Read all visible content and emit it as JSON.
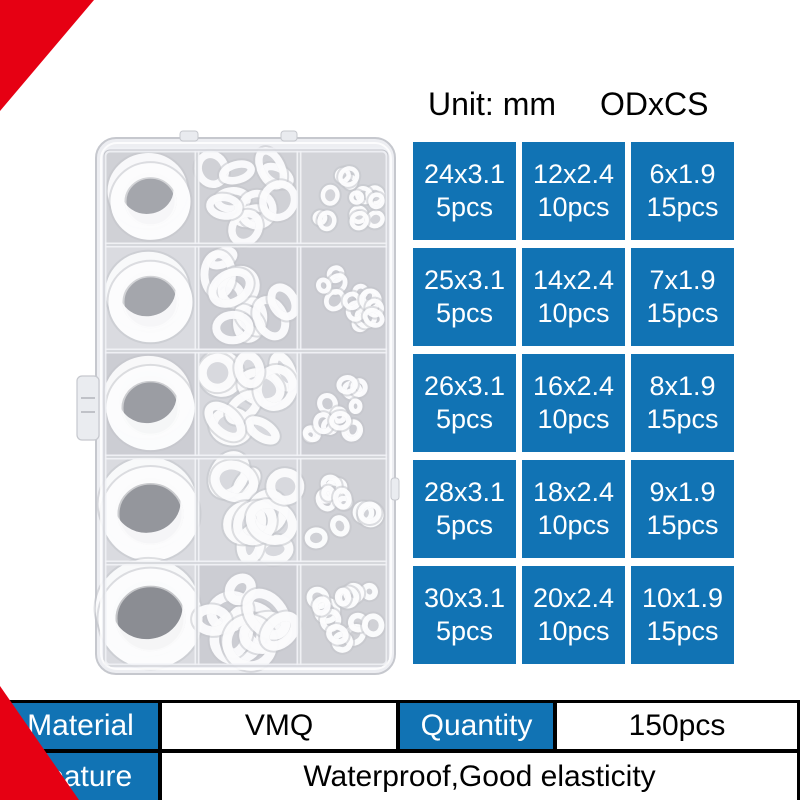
{
  "colors": {
    "accent_blue": "#1173b4",
    "accent_red": "#e60013",
    "grid_text": "#ffffff",
    "heading_text": "#000000"
  },
  "heading": {
    "unit_label": "Unit: mm",
    "format_label": "ODxCS"
  },
  "spec_grid": {
    "cells": [
      {
        "size": "24x3.1",
        "qty": "5pcs"
      },
      {
        "size": "12x2.4",
        "qty": "10pcs"
      },
      {
        "size": "6x1.9",
        "qty": "15pcs"
      },
      {
        "size": "25x3.1",
        "qty": "5pcs"
      },
      {
        "size": "14x2.4",
        "qty": "10pcs"
      },
      {
        "size": "7x1.9",
        "qty": "15pcs"
      },
      {
        "size": "26x3.1",
        "qty": "5pcs"
      },
      {
        "size": "16x2.4",
        "qty": "10pcs"
      },
      {
        "size": "8x1.9",
        "qty": "15pcs"
      },
      {
        "size": "28x3.1",
        "qty": "5pcs"
      },
      {
        "size": "18x2.4",
        "qty": "10pcs"
      },
      {
        "size": "9x1.9",
        "qty": "15pcs"
      },
      {
        "size": "30x3.1",
        "qty": "5pcs"
      },
      {
        "size": "20x2.4",
        "qty": "10pcs"
      },
      {
        "size": "10x1.9",
        "qty": "15pcs"
      }
    ]
  },
  "info_table": {
    "rows": [
      {
        "cells": [
          {
            "text": "Material",
            "type": "hdr"
          },
          {
            "text": "VMQ",
            "type": "val"
          },
          {
            "text": "Quantity",
            "type": "hdr"
          },
          {
            "text": "150pcs",
            "type": "val"
          }
        ]
      },
      {
        "cells": [
          {
            "text": "Feature",
            "type": "hdr"
          },
          {
            "text": "Waterproof,Good elasticity",
            "type": "val"
          }
        ]
      }
    ]
  },
  "photo": {
    "subject": "clear plastic organizer box with white silicone o-rings",
    "compartments": {
      "rows": 5,
      "cols": 3
    },
    "ring_size_by_column": [
      "large",
      "medium",
      "small"
    ],
    "visible_rings_per_cell": [
      2,
      10,
      13
    ]
  }
}
